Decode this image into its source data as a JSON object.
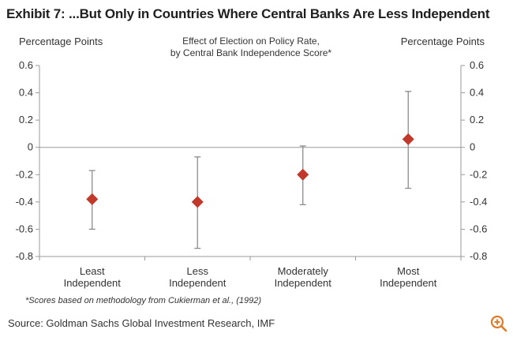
{
  "header": {
    "title": "Exhibit 7: ...But Only in Countries Where Central Banks Are Less Independent"
  },
  "footer": {
    "source": "Source: Goldman Sachs Global Investment Research, IMF"
  },
  "zoom": {
    "icon": "zoom-in-icon",
    "color": "#e07b2a"
  },
  "chart_data": {
    "type": "scatter",
    "title": "Effect  of Election on Policy Rate,",
    "subtitle": "by Central Bank Independence  Score*",
    "ylabel_left": "Percentage Points",
    "ylabel_right": "Percentage Points",
    "footnote": "*Scores based on methodology from Cukierman et al., (1992)",
    "ylim": [
      -0.8,
      0.6
    ],
    "yticks": [
      0.6,
      0.4,
      0.2,
      0,
      -0.2,
      -0.4,
      -0.6,
      -0.8
    ],
    "ytick_labels": [
      "0.6",
      "0.4",
      "0.2",
      "0",
      "-0.2",
      "-0.4",
      "-0.6",
      "-0.8"
    ],
    "grid": false,
    "zero_line": true,
    "categories": [
      [
        "Least",
        "Independent"
      ],
      [
        "Less",
        "Independent"
      ],
      [
        "Moderately",
        "Independent"
      ],
      [
        "Most",
        "Independent"
      ]
    ],
    "points": [
      {
        "value": -0.38,
        "low": -0.6,
        "high": -0.17
      },
      {
        "value": -0.4,
        "low": -0.74,
        "high": -0.07
      },
      {
        "value": -0.2,
        "low": -0.42,
        "high": 0.01
      },
      {
        "value": 0.06,
        "low": -0.3,
        "high": 0.41
      }
    ],
    "marker_color": "#c0392b",
    "errorbar_color": "#8c8c8c",
    "axis_color": "#9a9a9a"
  }
}
